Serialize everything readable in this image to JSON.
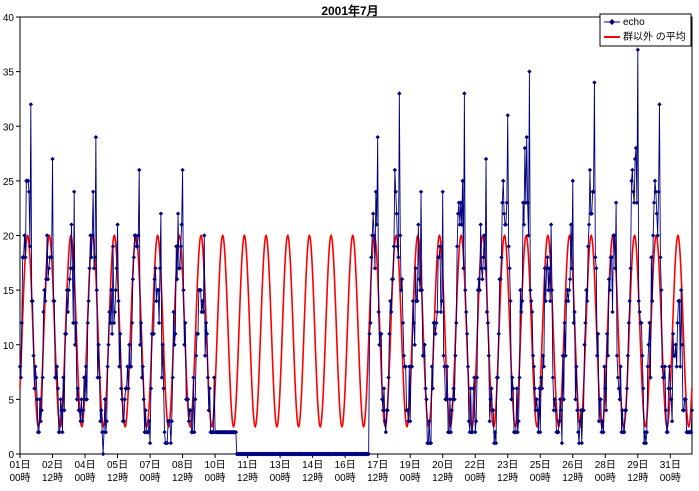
{
  "chart_data": {
    "type": "line",
    "title": "2001年7月",
    "xlabel": "",
    "ylabel": "",
    "ylim": [
      0,
      40
    ],
    "yticks": [
      0,
      5,
      10,
      15,
      20,
      25,
      30,
      35,
      40
    ],
    "xlim_days": [
      0,
      31
    ],
    "grid": false,
    "legend_position": "top-right",
    "x_tick_labels": [
      {
        "day": "01日",
        "hour": "00時",
        "t": 0
      },
      {
        "day": "02日",
        "hour": "12時",
        "t": 1.5
      },
      {
        "day": "04日",
        "hour": "00時",
        "t": 3
      },
      {
        "day": "05日",
        "hour": "12時",
        "t": 4.5
      },
      {
        "day": "07日",
        "hour": "00時",
        "t": 6
      },
      {
        "day": "08日",
        "hour": "12時",
        "t": 7.5
      },
      {
        "day": "10日",
        "hour": "00時",
        "t": 9
      },
      {
        "day": "11日",
        "hour": "12時",
        "t": 10.5
      },
      {
        "day": "13日",
        "hour": "00時",
        "t": 12
      },
      {
        "day": "14日",
        "hour": "12時",
        "t": 13.5
      },
      {
        "day": "16日",
        "hour": "00時",
        "t": 15
      },
      {
        "day": "17日",
        "hour": "12時",
        "t": 16.5
      },
      {
        "day": "19日",
        "hour": "00時",
        "t": 18
      },
      {
        "day": "20日",
        "hour": "12時",
        "t": 19.5
      },
      {
        "day": "22日",
        "hour": "00時",
        "t": 21
      },
      {
        "day": "23日",
        "hour": "12時",
        "t": 22.5
      },
      {
        "day": "25日",
        "hour": "00時",
        "t": 24
      },
      {
        "day": "26日",
        "hour": "12時",
        "t": 25.5
      },
      {
        "day": "28日",
        "hour": "00時",
        "t": 27
      },
      {
        "day": "29日",
        "hour": "12時",
        "t": 28.5
      },
      {
        "day": "31日",
        "hour": "00時",
        "t": 30
      }
    ],
    "series": [
      {
        "name": "echo",
        "color": "#000080",
        "marker": "diamond",
        "description_note_hidden": "",
        "daily_peaks": [
          32,
          27,
          24,
          29,
          21,
          26,
          22,
          26,
          20,
          0,
          0,
          0,
          0,
          0,
          0,
          0,
          29,
          33,
          24,
          24,
          33,
          27,
          31,
          35,
          21,
          25,
          34,
          23,
          37,
          32,
          15
        ],
        "daily_troughs": [
          2,
          2,
          3,
          0,
          3,
          2,
          1,
          2,
          2,
          2,
          0,
          0,
          0,
          0,
          0,
          0,
          2,
          3,
          1,
          2,
          2,
          1,
          2,
          2,
          2,
          1,
          2,
          2,
          1,
          2,
          2
        ],
        "outage_start_day": 11.8,
        "outage_end_day": 16.1
      },
      {
        "name": "群以外 の平均",
        "color": "#ff0000",
        "daily_peak": 20,
        "daily_trough": 2.5,
        "period_days": 1
      }
    ]
  }
}
